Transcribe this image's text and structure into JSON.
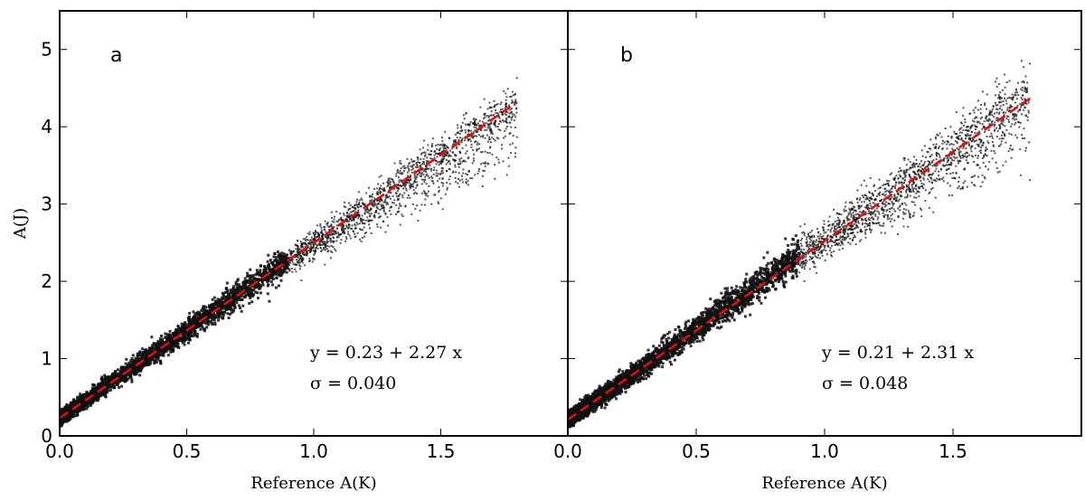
{
  "chart_data": [
    {
      "type": "scatter",
      "panel_label": "a",
      "xlabel": "Reference A(K)",
      "ylabel": "A(J)",
      "xlim": [
        0.0,
        2.0
      ],
      "ylim": [
        0,
        5.5
      ],
      "xticks": [
        0.0,
        0.5,
        1.0,
        1.5
      ],
      "yticks": [
        0,
        1,
        2,
        3,
        4,
        5
      ],
      "xtick_labels": [
        "0.0",
        "0.5",
        "1.0",
        "1.5"
      ],
      "ytick_labels": [
        "0",
        "1",
        "2",
        "3",
        "4",
        "5"
      ],
      "fit": {
        "intercept": 0.23,
        "slope": 2.27,
        "x_range": [
          0.0,
          1.8
        ],
        "style": "dashed",
        "color": "#dd1111"
      },
      "annotation_fit": "y = 0.23 + 2.27 x",
      "annotation_sigma": "σ = 0.040",
      "scatter_color": "#111111",
      "scatter_sigma": 0.04,
      "scatter_max_x": 1.8
    },
    {
      "type": "scatter",
      "panel_label": "b",
      "xlabel": "Reference A(K)",
      "ylabel": "",
      "xlim": [
        0.0,
        2.0
      ],
      "ylim": [
        0,
        5.5
      ],
      "xticks": [
        0.0,
        0.5,
        1.0,
        1.5
      ],
      "yticks": [
        0,
        1,
        2,
        3,
        4,
        5
      ],
      "xtick_labels": [
        "0.0",
        "0.5",
        "1.0",
        "1.5"
      ],
      "ytick_labels": [],
      "fit": {
        "intercept": 0.21,
        "slope": 2.31,
        "x_range": [
          0.0,
          1.8
        ],
        "style": "dashed",
        "color": "#dd1111"
      },
      "annotation_fit": "y = 0.21 + 2.31 x",
      "annotation_sigma": "σ = 0.048",
      "scatter_color": "#111111",
      "scatter_sigma": 0.048,
      "scatter_max_x": 1.8
    }
  ]
}
